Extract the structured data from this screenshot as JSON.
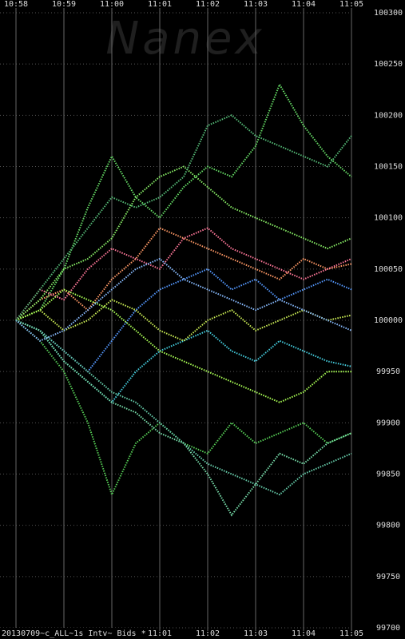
{
  "chart_data": {
    "type": "line",
    "watermark": "Nanex",
    "footer": "20130709~c_ALL~1s Intv~ Bids *",
    "x": [
      "10:58:00",
      "10:58:30",
      "10:59:00",
      "10:59:30",
      "11:00:00",
      "11:00:30",
      "11:01:00",
      "11:01:30",
      "11:02:00",
      "11:02:30",
      "11:03:00",
      "11:03:30",
      "11:04:00",
      "11:04:30",
      "11:05:00"
    ],
    "xlim": [
      "10:58",
      "11:05"
    ],
    "xticks": [
      "10:58",
      "10:59",
      "11:00",
      "11:01",
      "11:02",
      "11:03",
      "11:04",
      "11:05"
    ],
    "ylim": [
      99700,
      100300
    ],
    "yticks": [
      99700,
      99750,
      99800,
      99850,
      99900,
      99950,
      100000,
      100050,
      100100,
      100150,
      100200,
      100250,
      100300
    ],
    "grid": true,
    "series": [
      {
        "color": "#66dd66",
        "values": [
          100000,
          100010,
          100050,
          100110,
          100160,
          100120,
          100100,
          100130,
          100150,
          100140,
          100170,
          100230,
          100190,
          100160,
          100140
        ]
      },
      {
        "color": "#55cc55",
        "values": [
          100000,
          99980,
          99950,
          99900,
          99830,
          99880,
          99900,
          99880,
          99870,
          99900,
          99880,
          99890,
          99900,
          99880,
          99890
        ]
      },
      {
        "color": "#ff9966",
        "values": [
          100000,
          100020,
          100030,
          100010,
          100040,
          100060,
          100090,
          100080,
          100070,
          100060,
          100050,
          100040,
          100060,
          100050,
          100055
        ]
      },
      {
        "color": "#44ccdd",
        "values": [
          100000,
          99990,
          99960,
          99940,
          99920,
          99950,
          99970,
          99980,
          99990,
          99970,
          99960,
          99980,
          99970,
          99960,
          99955
        ]
      },
      {
        "color": "#5599ff",
        "values": [
          100000,
          99990,
          99970,
          99950,
          99980,
          100010,
          100030,
          100040,
          100050,
          100030,
          100040,
          100020,
          100030,
          100040,
          100030
        ]
      },
      {
        "color": "#ccee55",
        "values": [
          100000,
          100010,
          99990,
          100000,
          100020,
          100010,
          99990,
          99980,
          100000,
          100010,
          99990,
          100000,
          100010,
          100000,
          100005
        ]
      },
      {
        "color": "#66ccaa",
        "values": [
          100000,
          99990,
          99970,
          99950,
          99930,
          99920,
          99900,
          99880,
          99860,
          99850,
          99840,
          99830,
          99850,
          99860,
          99870
        ]
      },
      {
        "color": "#77ddaa",
        "values": [
          100000,
          99990,
          99960,
          99940,
          99920,
          99910,
          99890,
          99880,
          99850,
          99810,
          99840,
          99870,
          99860,
          99880,
          99890
        ]
      },
      {
        "color": "#ff7799",
        "values": [
          100000,
          100030,
          100020,
          100050,
          100070,
          100060,
          100050,
          100080,
          100090,
          100070,
          100060,
          100050,
          100040,
          100050,
          100060
        ]
      },
      {
        "color": "#88ee66",
        "values": [
          100000,
          100020,
          100050,
          100060,
          100080,
          100120,
          100140,
          100150,
          100130,
          100110,
          100100,
          100090,
          100080,
          100070,
          100080
        ]
      },
      {
        "color": "#aaff55",
        "values": [
          100000,
          100010,
          100030,
          100020,
          100010,
          99990,
          99970,
          99960,
          99950,
          99940,
          99930,
          99920,
          99930,
          99950,
          99950
        ]
      },
      {
        "color": "#88bbff",
        "values": [
          100000,
          99980,
          99990,
          100010,
          100030,
          100050,
          100060,
          100040,
          100030,
          100020,
          100010,
          100020,
          100010,
          100000,
          99990
        ]
      },
      {
        "color": "#55bb77",
        "values": [
          100000,
          100030,
          100060,
          100090,
          100120,
          100110,
          100120,
          100140,
          100190,
          100200,
          100180,
          100170,
          100160,
          100150,
          100180
        ]
      }
    ]
  }
}
